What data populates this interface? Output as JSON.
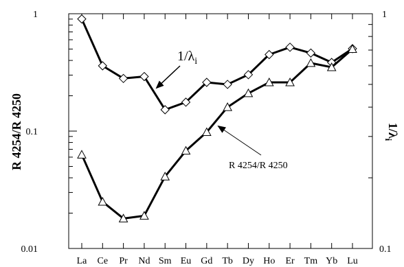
{
  "chart_data": {
    "type": "line",
    "title": "",
    "xlabel": "",
    "ylabel_left": "R 4254/R 4250",
    "ylabel_right": "1/λ",
    "ylabel_right_subscript": "i",
    "yscale": "log",
    "ylim_left": [
      0.01,
      1
    ],
    "ylim_right": [
      0.1,
      1
    ],
    "grid": false,
    "categories": [
      "La",
      "Ce",
      "Pr",
      "Nd",
      "Sm",
      "Eu",
      "Gd",
      "Tb",
      "Dy",
      "Ho",
      "Er",
      "Tm",
      "Yb",
      "Lu"
    ],
    "y_ticks_left": [
      "1",
      "0.1",
      "0.01"
    ],
    "y_ticks_right": [
      "1",
      "0.1"
    ],
    "series": [
      {
        "name": "1/λi",
        "axis": "right",
        "marker": "diamond",
        "values": [
          0.95,
          0.6,
          0.53,
          0.54,
          0.39,
          0.42,
          0.51,
          0.5,
          0.55,
          0.67,
          0.72,
          0.68,
          0.62,
          0.71
        ]
      },
      {
        "name": "R 4254/R 4250",
        "axis": "left",
        "marker": "triangle",
        "values": [
          0.063,
          0.025,
          0.018,
          0.019,
          0.041,
          0.068,
          0.098,
          0.16,
          0.21,
          0.26,
          0.26,
          0.38,
          0.35,
          0.5
        ]
      }
    ],
    "annotations": [
      {
        "text_main": "1/λ",
        "text_sub": "i"
      },
      {
        "text_main": "R 4254/R 4250",
        "text_sub": ""
      }
    ]
  }
}
